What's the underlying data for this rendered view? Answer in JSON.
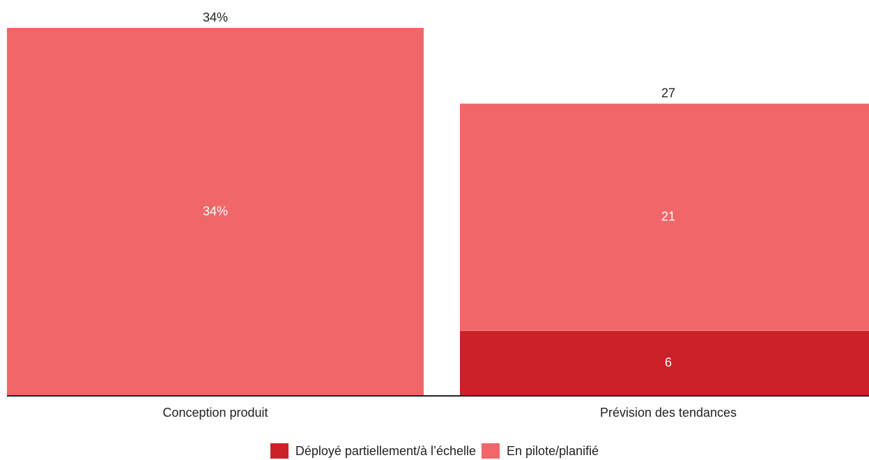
{
  "chart_data": {
    "type": "bar",
    "stacked": true,
    "categories": [
      "Conception produit",
      "Prévision des tendances"
    ],
    "series": [
      {
        "name": "Déployé partiellement/à l’échelle",
        "color": "#cc2129",
        "values": [
          0,
          6
        ],
        "labels": [
          "",
          "6"
        ]
      },
      {
        "name": "En pilote/planifié",
        "color": "#f06669",
        "values": [
          34,
          21
        ],
        "labels": [
          "34%",
          "21"
        ]
      }
    ],
    "totals": [
      "34%",
      "27"
    ],
    "ylim": [
      0,
      34
    ],
    "grid": false,
    "legend_position": "bottom",
    "title": "",
    "xlabel": "",
    "ylabel": ""
  }
}
